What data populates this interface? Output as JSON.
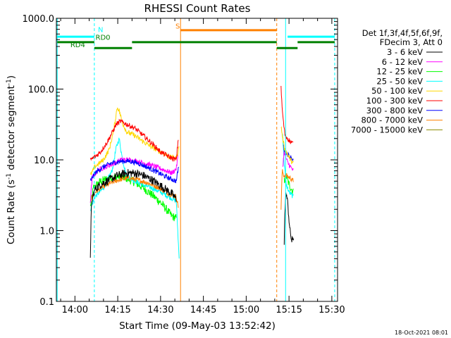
{
  "chart_data": {
    "type": "line",
    "title": "RHESSI Count Rates",
    "xlabel": "Start Time (09-May-03 13:52:42)",
    "ylabel_main": "Count Rate (s",
    "ylabel_sup1": "-1",
    "ylabel_mid": " detector segment",
    "ylabel_sup2": "-1",
    "ylabel_end": ")",
    "y_scale": "log",
    "ylim": [
      0.1,
      1000
    ],
    "xlim_minutes": [
      53.5,
      152
    ],
    "x_ticks": [
      {
        "t": 60,
        "label": "14:00"
      },
      {
        "t": 75,
        "label": "14:15"
      },
      {
        "t": 90,
        "label": "14:30"
      },
      {
        "t": 105,
        "label": "14:45"
      },
      {
        "t": 120,
        "label": "15:00"
      },
      {
        "t": 135,
        "label": "15:15"
      },
      {
        "t": 150,
        "label": "15:30"
      }
    ],
    "y_ticks": [
      {
        "v": 0.1,
        "label": "0.1"
      },
      {
        "v": 1,
        "label": "1.0"
      },
      {
        "v": 10,
        "label": "10.0"
      },
      {
        "v": 100,
        "label": "100.0"
      },
      {
        "v": 1000,
        "label": "1000.0"
      }
    ],
    "legend_header": [
      "Det 1f,3f,4f,5f,6f,9f,",
      "FDecim 3, Att 0"
    ],
    "series": [
      {
        "name": "3 - 6 keV",
        "color": "#000000",
        "pre": [
          [
            65.4,
            0.45
          ],
          [
            65.7,
            1.8
          ],
          [
            66.2,
            3.0
          ],
          [
            67,
            3.8
          ],
          [
            69,
            4.5
          ],
          [
            72,
            5.2
          ],
          [
            75,
            6.0
          ],
          [
            78,
            6.5
          ],
          [
            81,
            6.5
          ],
          [
            84,
            6.0
          ],
          [
            87,
            5.2
          ],
          [
            90,
            4.3
          ],
          [
            92,
            3.8
          ],
          [
            94,
            3.3
          ],
          [
            95.5,
            2.8
          ]
        ],
        "post": [
          [
            133.3,
            0.7
          ],
          [
            133.6,
            2.0
          ],
          [
            134,
            3.5
          ],
          [
            134.6,
            2.3
          ],
          [
            135.3,
            1.0
          ],
          [
            136,
            0.7
          ],
          [
            136.6,
            0.8
          ]
        ]
      },
      {
        "name": "6 - 12 keV",
        "color": "#ff00ff",
        "pre": [
          [
            65.4,
            2.5
          ],
          [
            66,
            5.5
          ],
          [
            68,
            7.2
          ],
          [
            71,
            8.0
          ],
          [
            74,
            9.0
          ],
          [
            76,
            10.0
          ],
          [
            79,
            10.0
          ],
          [
            82,
            9.5
          ],
          [
            86,
            8.6
          ],
          [
            89,
            7.8
          ],
          [
            92,
            7.0
          ],
          [
            94,
            6.5
          ],
          [
            95.5,
            7.5
          ],
          [
            96.2,
            12.0
          ]
        ],
        "post": [
          [
            132.8,
            8.0
          ],
          [
            133.3,
            13.0
          ],
          [
            133.8,
            11.0
          ],
          [
            134.6,
            9.0
          ],
          [
            135.5,
            8.0
          ],
          [
            136.5,
            7.0
          ]
        ]
      },
      {
        "name": "12 - 25 keV",
        "color": "#00ff00",
        "pre": [
          [
            65.4,
            2.2
          ],
          [
            66.5,
            4.0
          ],
          [
            69,
            5.0
          ],
          [
            72,
            5.5
          ],
          [
            75,
            5.8
          ],
          [
            78,
            5.5
          ],
          [
            81,
            4.8
          ],
          [
            84,
            4.0
          ],
          [
            87,
            3.2
          ],
          [
            90,
            2.5
          ],
          [
            92,
            2.0
          ],
          [
            94,
            1.6
          ],
          [
            95.5,
            1.5
          ]
        ],
        "post": [
          [
            133.3,
            5.0
          ],
          [
            134,
            6.0
          ],
          [
            135,
            4.5
          ],
          [
            136.5,
            3.5
          ]
        ]
      },
      {
        "name": "25 - 50 keV",
        "color": "#00ffff",
        "pre": [
          [
            65.4,
            2.0
          ],
          [
            67,
            3.0
          ],
          [
            70,
            4.0
          ],
          [
            73,
            7.0
          ],
          [
            74.5,
            15.0
          ],
          [
            75.5,
            20.0
          ],
          [
            76.5,
            11.0
          ],
          [
            78,
            6.0
          ],
          [
            81,
            5.0
          ],
          [
            84,
            4.4
          ],
          [
            87,
            4.0
          ],
          [
            90,
            3.5
          ],
          [
            93,
            3.0
          ],
          [
            95.5,
            2.6
          ],
          [
            96.5,
            0.4
          ]
        ],
        "post": [
          [
            132.7,
            25.0
          ],
          [
            133.3,
            9.0
          ],
          [
            134,
            4.5
          ],
          [
            135,
            3.5
          ],
          [
            136.5,
            3.0
          ]
        ]
      },
      {
        "name": "50 - 100 keV",
        "color": "#ffd700",
        "pre": [
          [
            65.4,
            6.0
          ],
          [
            67,
            8.0
          ],
          [
            70,
            10.0
          ],
          [
            72,
            14.0
          ],
          [
            73.5,
            25.0
          ],
          [
            74.8,
            55.0
          ],
          [
            75.5,
            50.0
          ],
          [
            76.5,
            35.0
          ],
          [
            78,
            25.0
          ],
          [
            81,
            22.0
          ],
          [
            84,
            18.0
          ],
          [
            87,
            15.0
          ],
          [
            90,
            13.0
          ],
          [
            93,
            11.0
          ],
          [
            95.5,
            10.5
          ],
          [
            96.5,
            15.0
          ]
        ],
        "post": [
          [
            132.2,
            30.0
          ],
          [
            132.8,
            20.0
          ],
          [
            133.5,
            14.0
          ],
          [
            134.5,
            12.0
          ],
          [
            135.5,
            10.0
          ],
          [
            136.5,
            9.0
          ]
        ]
      },
      {
        "name": "100 - 300 keV",
        "color": "#ff0000",
        "pre": [
          [
            65.4,
            10.0
          ],
          [
            67,
            11.0
          ],
          [
            69,
            13.0
          ],
          [
            71,
            17.0
          ],
          [
            73,
            24.0
          ],
          [
            74.5,
            32.0
          ],
          [
            76,
            35.0
          ],
          [
            78,
            32.0
          ],
          [
            81,
            28.0
          ],
          [
            84,
            22.0
          ],
          [
            87,
            17.0
          ],
          [
            90,
            13.0
          ],
          [
            93,
            11.0
          ],
          [
            95.5,
            10.0
          ],
          [
            96.2,
            20.0
          ]
        ],
        "post": [
          [
            132.2,
            110.0
          ],
          [
            132.5,
            60.0
          ],
          [
            133,
            35.0
          ],
          [
            133.6,
            22.0
          ],
          [
            134.5,
            20.0
          ],
          [
            135.5,
            18.0
          ],
          [
            136.5,
            17.0
          ]
        ]
      },
      {
        "name": "300 - 800 keV",
        "color": "#0000ff",
        "pre": [
          [
            65.4,
            5.0
          ],
          [
            67,
            6.5
          ],
          [
            70,
            8.0
          ],
          [
            73,
            9.0
          ],
          [
            76,
            9.5
          ],
          [
            79,
            9.6
          ],
          [
            82,
            9.0
          ],
          [
            85,
            8.0
          ],
          [
            88,
            7.0
          ],
          [
            91,
            6.0
          ],
          [
            93,
            5.5
          ],
          [
            95.5,
            5.0
          ],
          [
            96.3,
            8.0
          ]
        ],
        "post": [
          [
            133,
            16.0
          ],
          [
            133.6,
            13.0
          ],
          [
            134.5,
            12.0
          ],
          [
            135.5,
            11.0
          ],
          [
            136.5,
            10.0
          ]
        ]
      },
      {
        "name": "800 - 7000 keV",
        "color": "#ff8000",
        "pre": [
          [
            65.4,
            2.7
          ],
          [
            67,
            3.5
          ],
          [
            70,
            4.2
          ],
          [
            73,
            4.8
          ],
          [
            76,
            5.3
          ],
          [
            79,
            5.5
          ],
          [
            82,
            5.2
          ],
          [
            85,
            4.8
          ],
          [
            88,
            4.3
          ],
          [
            91,
            3.7
          ],
          [
            93,
            3.3
          ],
          [
            95.5,
            3.0
          ],
          [
            96.2,
            2.2
          ]
        ],
        "post": [
          [
            132.2,
            2.0
          ],
          [
            132.6,
            7.0
          ],
          [
            133.2,
            6.0
          ],
          [
            134.2,
            6.0
          ],
          [
            135.5,
            5.5
          ],
          [
            136.5,
            5.0
          ]
        ]
      },
      {
        "name": "7000 - 15000 keV",
        "color": "#8b8b00",
        "pre": [],
        "post": []
      }
    ],
    "markers": [
      {
        "t": 53.8,
        "color": "#00ffff",
        "style": "solid"
      },
      {
        "t": 66.8,
        "color": "#00ffff",
        "style": "dashed"
      },
      {
        "t": 97.0,
        "color": "#ff8000",
        "style": "solid"
      },
      {
        "t": 130.7,
        "color": "#ff8000",
        "style": "dashed"
      },
      {
        "t": 133.8,
        "color": "#00ffff",
        "style": "solid"
      },
      {
        "t": 151.0,
        "color": "#00ffff",
        "style": "dashed"
      }
    ],
    "bars": [
      {
        "t0": 53.8,
        "t1": 66.8,
        "y": 550,
        "color": "#00ffff"
      },
      {
        "t0": 134.5,
        "t1": 151.0,
        "y": 550,
        "color": "#00ffff"
      },
      {
        "t0": 97.0,
        "t1": 130.7,
        "y": 680,
        "color": "#ff8000"
      },
      {
        "t0": 53.8,
        "t1": 66.8,
        "y": 460,
        "color": "#008000"
      },
      {
        "t0": 66.8,
        "t1": 80.0,
        "y": 380,
        "color": "#008000"
      },
      {
        "t0": 80.0,
        "t1": 130.7,
        "y": 460,
        "color": "#008000"
      },
      {
        "t0": 130.7,
        "t1": 138.0,
        "y": 380,
        "color": "#008000"
      },
      {
        "t0": 138.0,
        "t1": 151.0,
        "y": 460,
        "color": "#008000"
      }
    ],
    "bar_labels": [
      {
        "text": "N",
        "t": 69.0,
        "y": 640,
        "color": "#00ffff"
      },
      {
        "text": "RD0",
        "t": 69.8,
        "y": 500,
        "color": "#008000"
      },
      {
        "text": "RD4",
        "t": 61.0,
        "y": 390,
        "color": "#008000"
      },
      {
        "text": "S",
        "t": 96.0,
        "y": 720,
        "color": "#ff8000"
      }
    ],
    "footer_timestamp": "18-Oct-2021 08:01"
  }
}
